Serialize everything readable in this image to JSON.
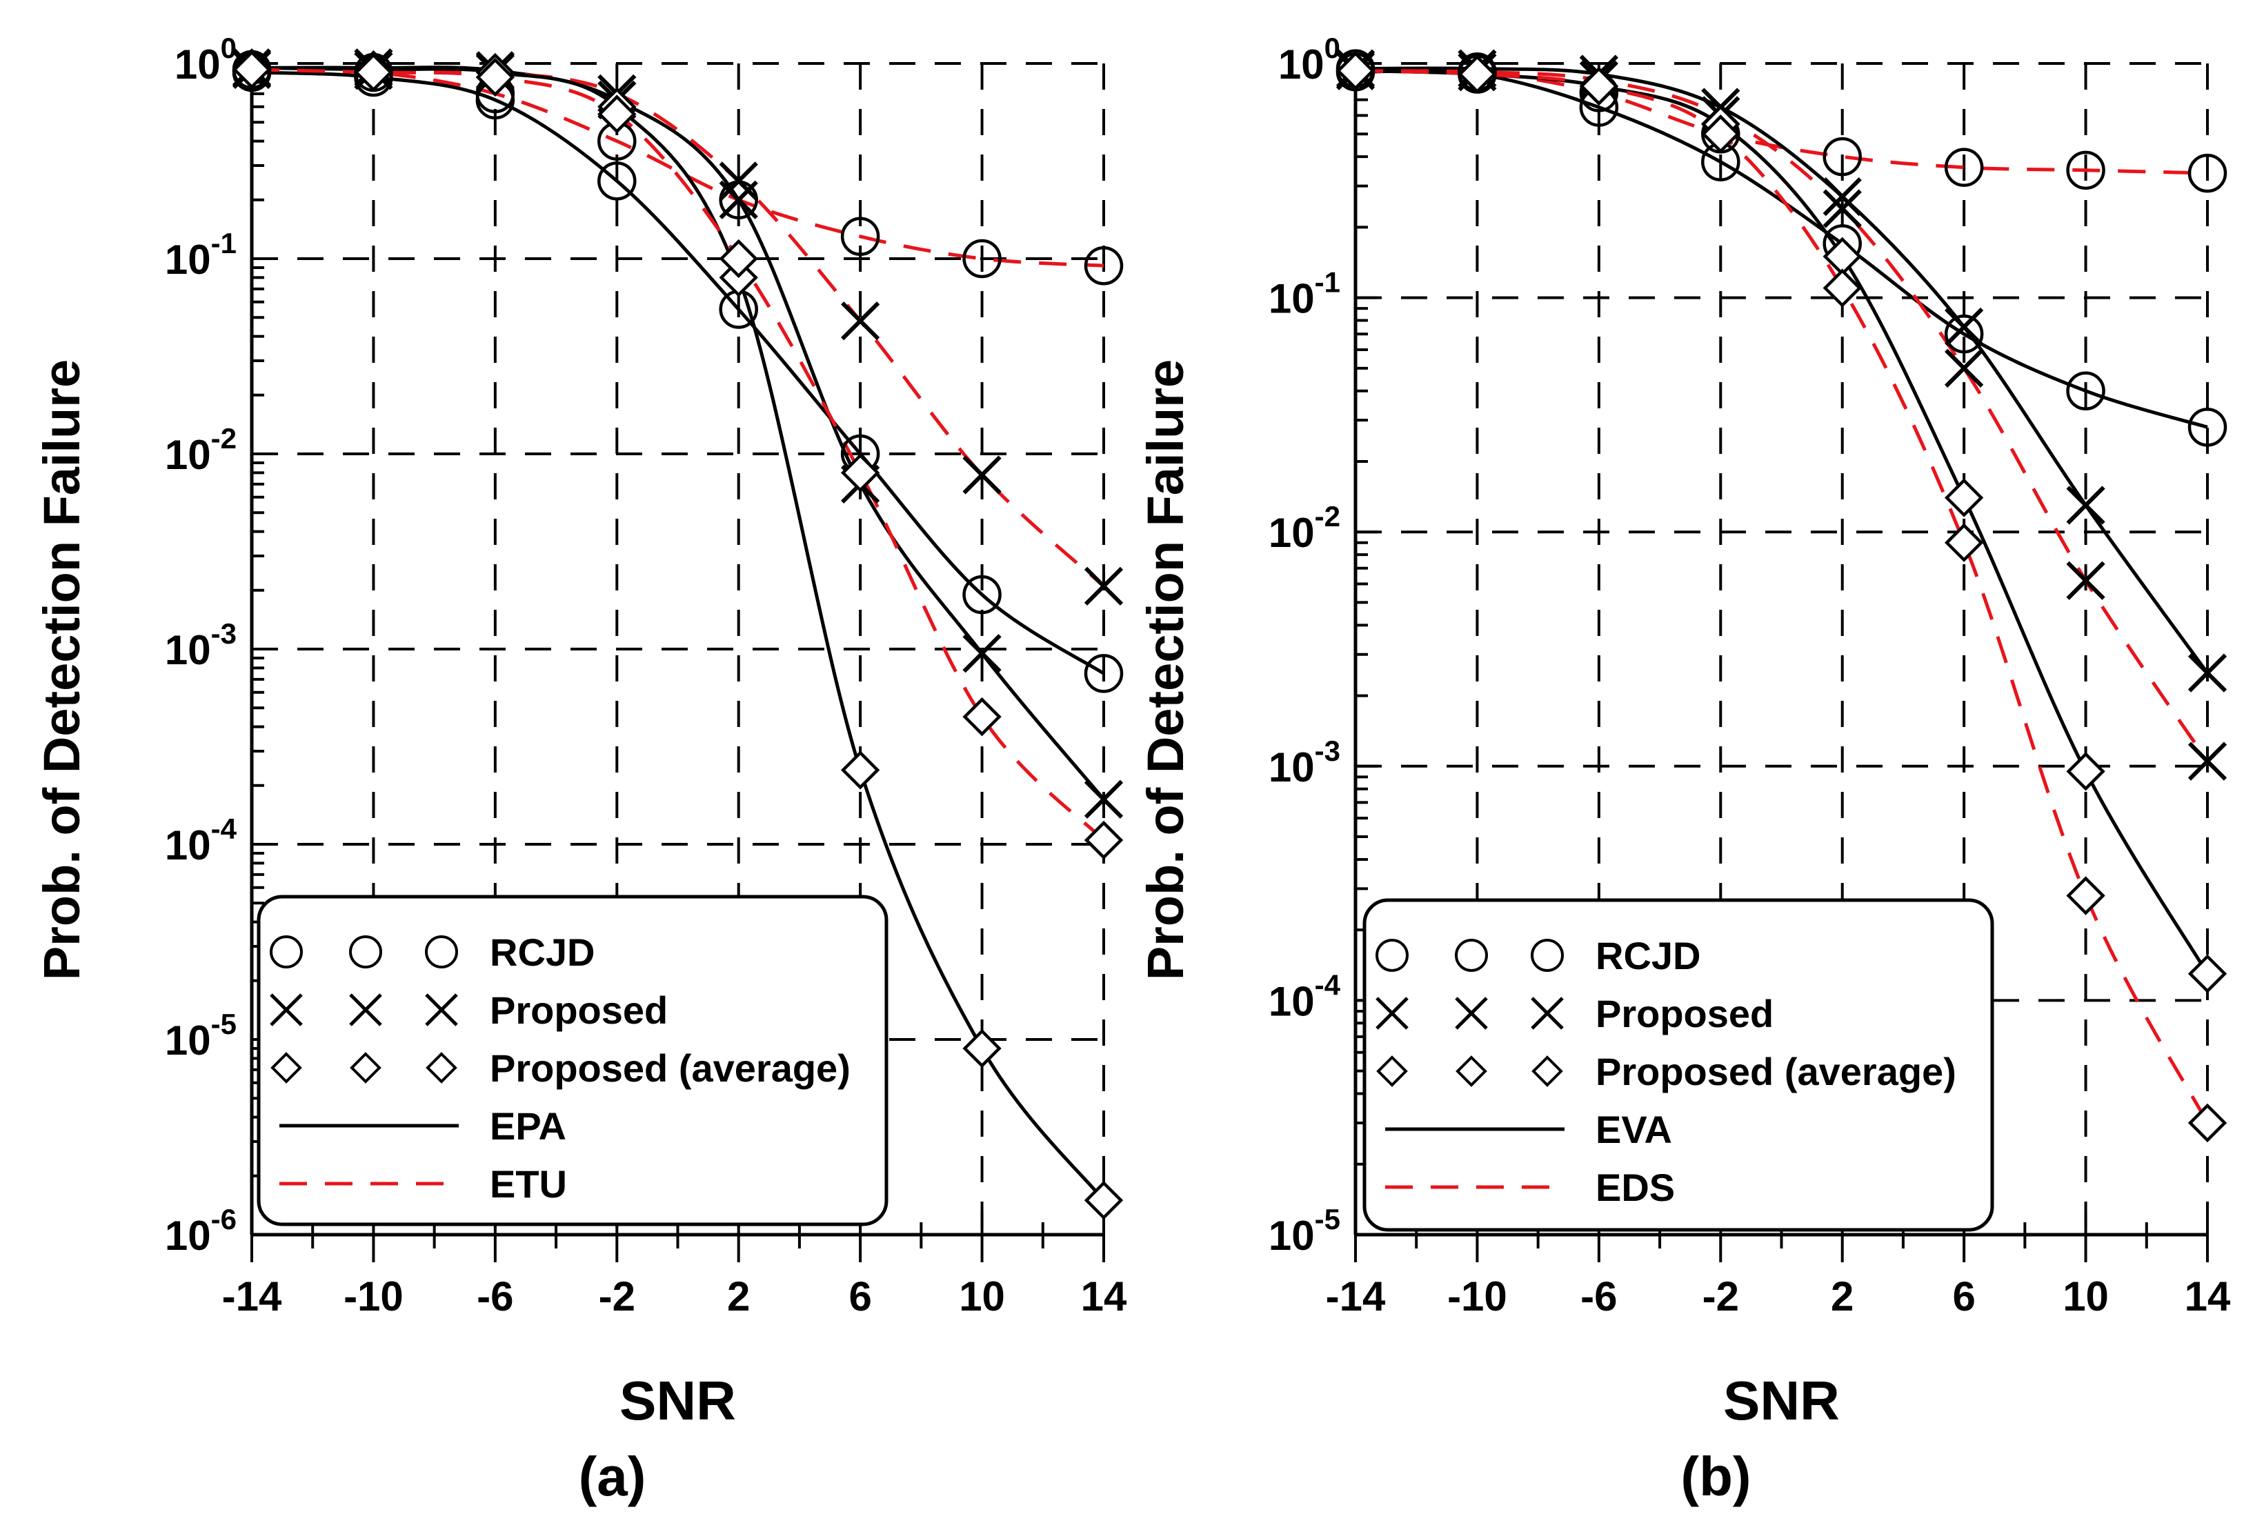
{
  "chart_data": [
    {
      "type": "line",
      "panel_label": "(a)",
      "xlabel": "SNR",
      "ylabel": "Prob. of Detection Failure",
      "x_ticks": [
        -14,
        -10,
        -6,
        -2,
        2,
        6,
        10,
        14
      ],
      "xlim": [
        -14,
        14
      ],
      "ylim": [
        1e-06,
        1
      ],
      "yscale": "log",
      "y_tick_bases": [
        "10",
        "10",
        "10",
        "10",
        "10",
        "10",
        "10"
      ],
      "y_tick_exponents": [
        "0",
        "-1",
        "-2",
        "-3",
        "-4",
        "-5",
        "-6"
      ],
      "grid": true,
      "legend_position": "bottom-left",
      "legend": {
        "markers": [
          {
            "label": "RCJD",
            "marker": "circle"
          },
          {
            "label": "Proposed",
            "marker": "x"
          },
          {
            "label": "Proposed  (average)",
            "marker": "diamond"
          }
        ],
        "lines": [
          {
            "label": "EPA",
            "style": "solid",
            "color": "#000000"
          },
          {
            "label": "ETU",
            "style": "dashed",
            "color": "#e8141b"
          }
        ]
      },
      "x": [
        -14,
        -10,
        -6,
        -2,
        2,
        6,
        10,
        14
      ],
      "series": [
        {
          "name": "RCJD EPA",
          "marker": "circle",
          "line": "EPA",
          "values": [
            0.9,
            0.85,
            0.65,
            0.25,
            0.055,
            0.01,
            0.0019,
            0.00075
          ]
        },
        {
          "name": "RCJD ETU",
          "marker": "circle",
          "line": "ETU",
          "values": [
            0.93,
            0.9,
            0.7,
            0.4,
            0.2,
            0.13,
            0.1,
            0.092
          ]
        },
        {
          "name": "Proposed EPA",
          "marker": "x",
          "line": "EPA",
          "values": [
            0.95,
            0.95,
            0.92,
            0.65,
            0.2,
            0.007,
            0.00095,
            0.00017
          ]
        },
        {
          "name": "Proposed ETU",
          "marker": "x",
          "line": "ETU",
          "values": [
            0.93,
            0.92,
            0.9,
            0.7,
            0.25,
            0.048,
            0.0078,
            0.0021
          ]
        },
        {
          "name": "Proposed (average) EPA",
          "marker": "diamond",
          "line": "EPA",
          "values": [
            0.95,
            0.93,
            0.9,
            0.6,
            0.08,
            0.00024,
            9e-06,
            1.5e-06
          ]
        },
        {
          "name": "Proposed (average) ETU",
          "marker": "diamond",
          "line": "ETU",
          "values": [
            0.93,
            0.9,
            0.85,
            0.55,
            0.1,
            0.008,
            0.00045,
            0.000105
          ]
        }
      ]
    },
    {
      "type": "line",
      "panel_label": "(b)",
      "xlabel": "SNR",
      "ylabel": "Prob. of Detection Failure",
      "x_ticks": [
        -14,
        -10,
        -6,
        -2,
        2,
        6,
        10,
        14
      ],
      "xlim": [
        -14,
        14
      ],
      "ylim": [
        1e-05,
        1
      ],
      "yscale": "log",
      "y_tick_bases": [
        "10",
        "10",
        "10",
        "10",
        "10",
        "10"
      ],
      "y_tick_exponents": [
        "0",
        "-1",
        "-2",
        "-3",
        "-4",
        "-5"
      ],
      "grid": true,
      "legend_position": "bottom-left",
      "legend": {
        "markers": [
          {
            "label": "RCJD",
            "marker": "circle"
          },
          {
            "label": "Proposed",
            "marker": "x"
          },
          {
            "label": "Proposed  (average)",
            "marker": "diamond"
          }
        ],
        "lines": [
          {
            "label": "EVA",
            "style": "solid",
            "color": "#000000"
          },
          {
            "label": "EDS",
            "style": "dashed",
            "color": "#e8141b"
          }
        ]
      },
      "x": [
        -14,
        -10,
        -6,
        -2,
        2,
        6,
        10,
        14
      ],
      "series": [
        {
          "name": "RCJD EVA",
          "marker": "circle",
          "line": "EVA",
          "values": [
            0.92,
            0.9,
            0.65,
            0.38,
            0.17,
            0.07,
            0.04,
            0.028
          ]
        },
        {
          "name": "RCJD EDS",
          "marker": "circle",
          "line": "EDS",
          "values": [
            0.95,
            0.92,
            0.75,
            0.5,
            0.4,
            0.36,
            0.35,
            0.34
          ]
        },
        {
          "name": "Proposed EVA",
          "marker": "x",
          "line": "EVA",
          "values": [
            0.95,
            0.95,
            0.9,
            0.65,
            0.27,
            0.075,
            0.013,
            0.0025
          ]
        },
        {
          "name": "Proposed EDS",
          "marker": "x",
          "line": "EDS",
          "values": [
            0.93,
            0.92,
            0.85,
            0.6,
            0.24,
            0.05,
            0.0062,
            0.00105
          ]
        },
        {
          "name": "Proposed (average) EVA",
          "marker": "diamond",
          "line": "EVA",
          "values": [
            0.93,
            0.9,
            0.8,
            0.55,
            0.15,
            0.014,
            0.00095,
            0.00013
          ]
        },
        {
          "name": "Proposed (average) EDS",
          "marker": "diamond",
          "line": "EDS",
          "values": [
            0.93,
            0.9,
            0.8,
            0.5,
            0.11,
            0.009,
            0.00028,
            3e-05
          ]
        }
      ]
    }
  ]
}
